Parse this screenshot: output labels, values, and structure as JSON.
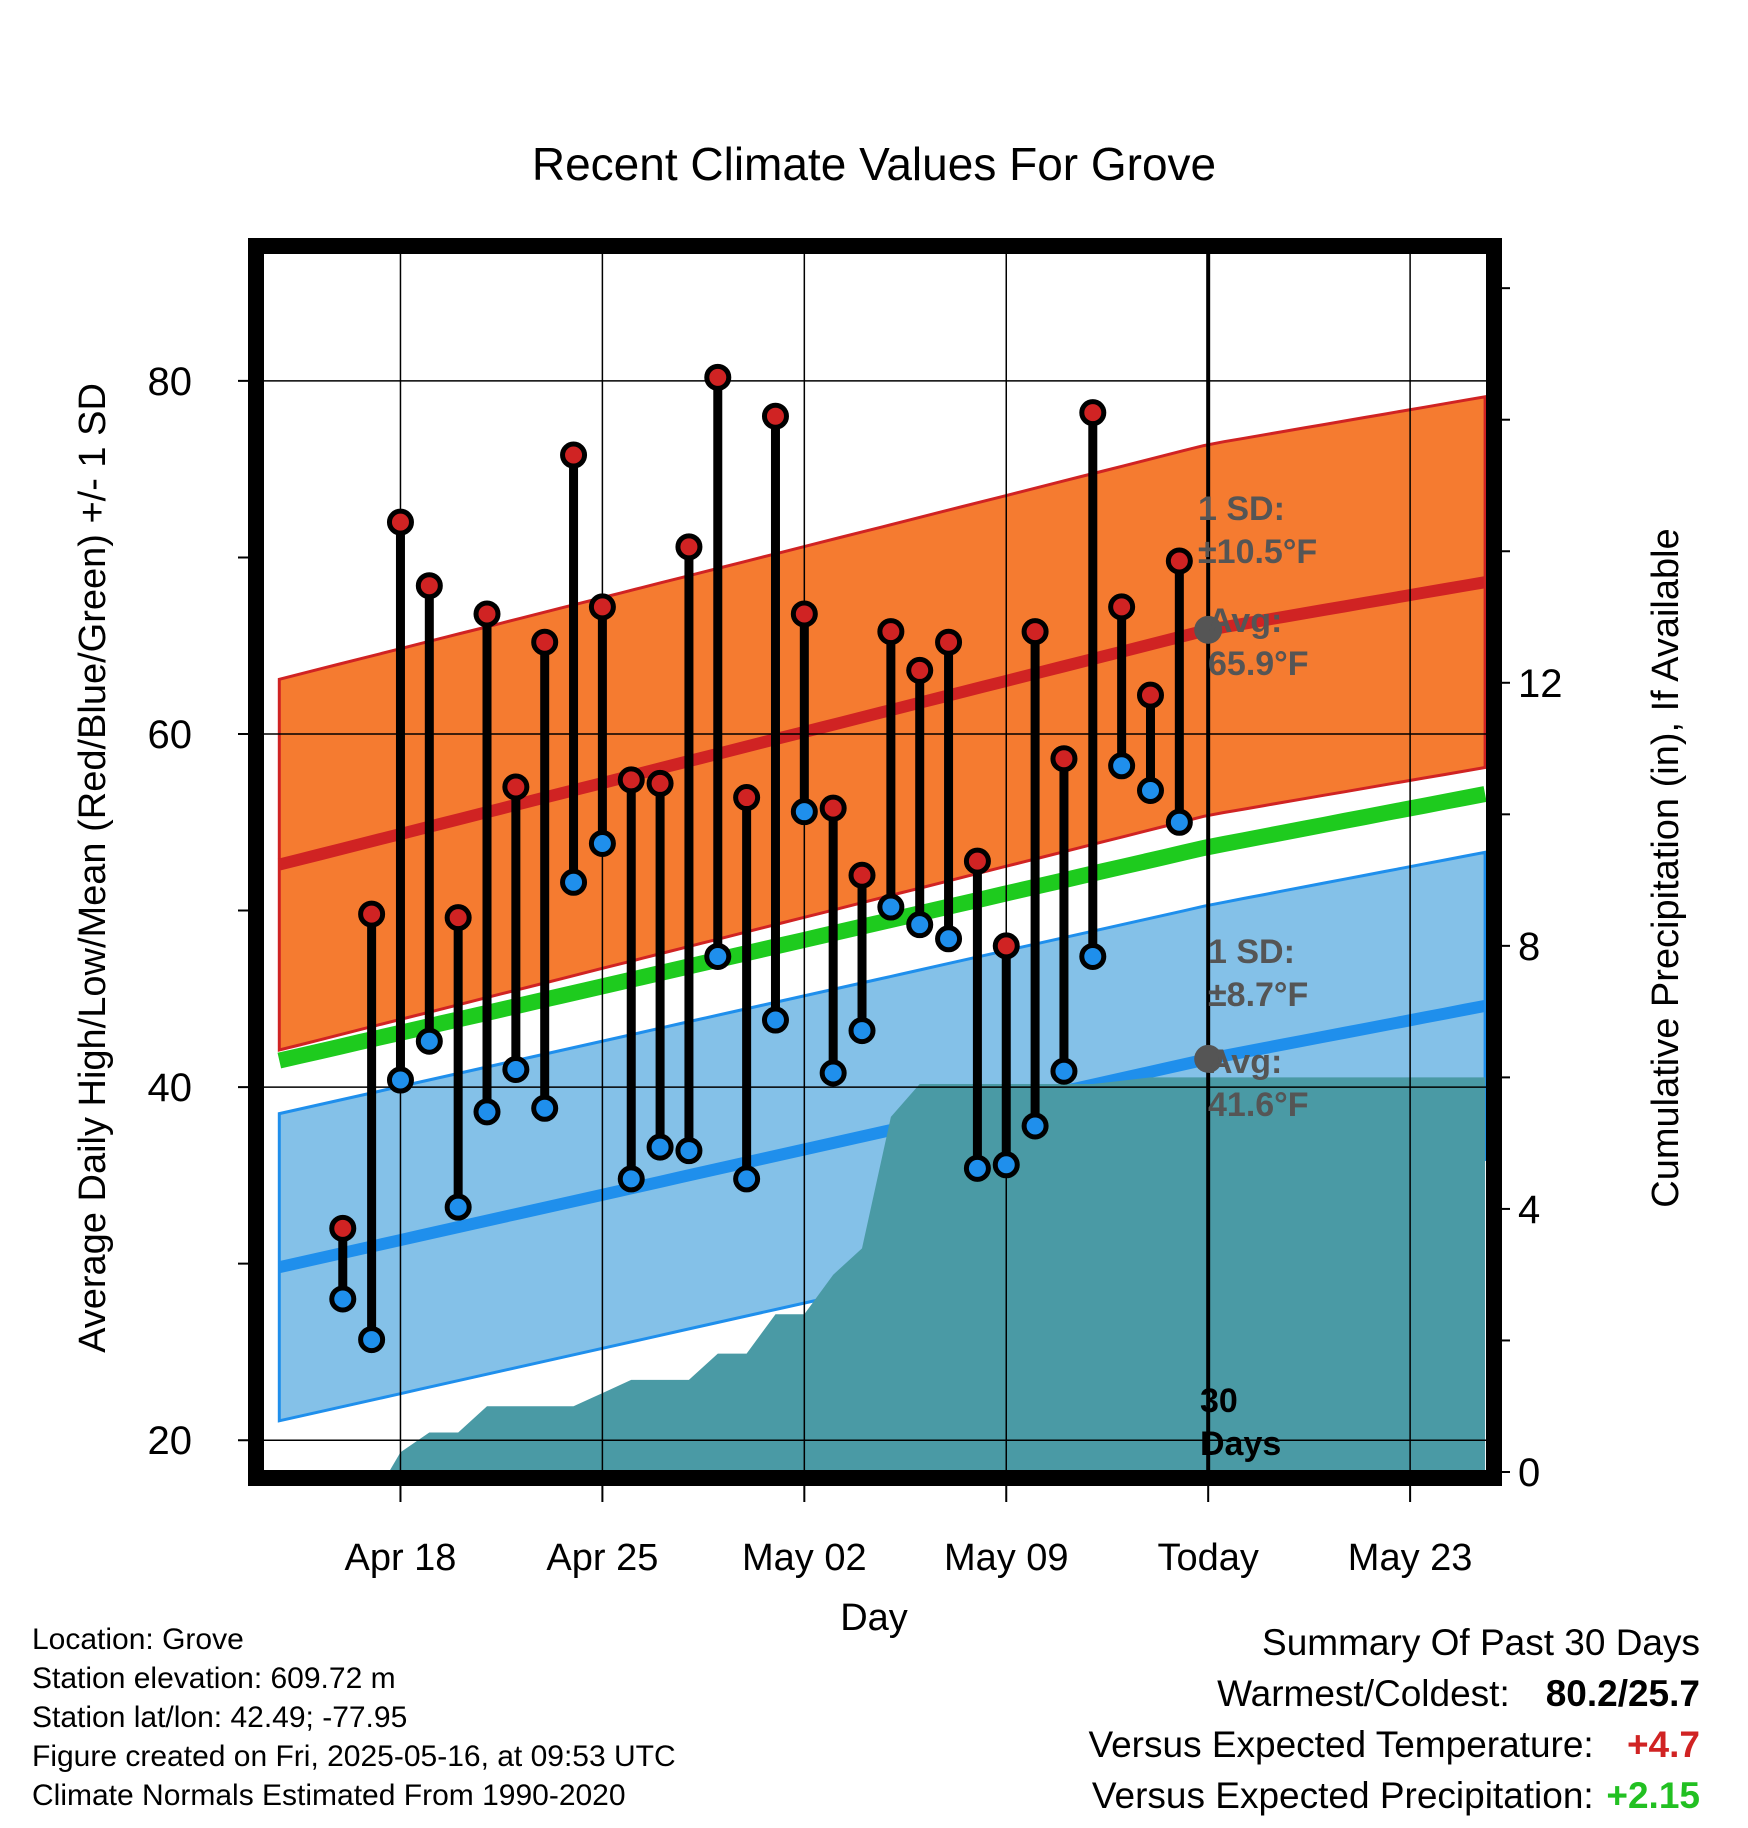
{
  "chart_data": {
    "type": "line",
    "title": "Recent Climate Values For Grove",
    "xlabel": "Day",
    "ylabel_left": "Average Daily High/Low/Mean (Red/Blue/Green) +/- 1 SD",
    "ylabel_right": "Cumulative Precipitation (in), If Available",
    "ylim_left": [
      18.2,
      87.3
    ],
    "ylim_right": [
      0,
      18.55
    ],
    "y_left_ticks": [
      20,
      40,
      60,
      80
    ],
    "y_right_ticks": [
      0,
      4,
      8,
      12
    ],
    "x_range_days": [
      -32.8,
      9.7
    ],
    "x_ticks": [
      {
        "day": -28,
        "label": "Apr 18"
      },
      {
        "day": -21,
        "label": "Apr 25"
      },
      {
        "day": -14,
        "label": "May 02"
      },
      {
        "day": -7,
        "label": "May 09"
      },
      {
        "day": 0,
        "label": "Today"
      },
      {
        "day": 7,
        "label": "May 23"
      }
    ],
    "today_day": 0,
    "grid": true,
    "series": [
      {
        "name": "Daily High",
        "color": "#d02323",
        "days": [
          -30,
          -29,
          -28,
          -27,
          -26,
          -25,
          -24,
          -23,
          -22,
          -21,
          -20,
          -19,
          -18,
          -17,
          -16,
          -15,
          -14,
          -13,
          -12,
          -11,
          -10,
          -9,
          -8,
          -7,
          -6,
          -5,
          -4,
          -3,
          -2,
          -1
        ],
        "values": [
          32.0,
          49.8,
          72.0,
          68.4,
          49.6,
          66.8,
          57.0,
          65.2,
          75.8,
          67.2,
          57.4,
          57.2,
          70.6,
          80.2,
          56.4,
          78.0,
          66.8,
          55.8,
          52.0,
          65.8,
          63.6,
          65.2,
          52.8,
          48.0,
          65.8,
          58.6,
          78.2,
          67.2,
          62.2,
          69.8
        ]
      },
      {
        "name": "Daily Low",
        "color": "#1f8fec",
        "days": [
          -30,
          -29,
          -28,
          -27,
          -26,
          -25,
          -24,
          -23,
          -22,
          -21,
          -20,
          -19,
          -18,
          -17,
          -16,
          -15,
          -14,
          -13,
          -12,
          -11,
          -10,
          -9,
          -8,
          -7,
          -6,
          -5,
          -4,
          -3,
          -2,
          -1
        ],
        "values": [
          28.0,
          25.7,
          40.4,
          42.6,
          33.2,
          38.6,
          41.0,
          38.8,
          51.6,
          53.8,
          34.8,
          36.6,
          36.4,
          47.4,
          34.8,
          43.8,
          55.6,
          40.8,
          43.2,
          50.2,
          49.2,
          48.4,
          35.4,
          35.6,
          37.8,
          40.9,
          47.4,
          58.2,
          56.8,
          55.0
        ]
      },
      {
        "name": "Normal High",
        "color": "#d02323",
        "days": [
          -32.2,
          0,
          9.6
        ],
        "values": [
          52.6,
          65.9,
          68.6
        ]
      },
      {
        "name": "Normal High SD band",
        "sd": 10.5,
        "color": "#f57b30"
      },
      {
        "name": "Normal Mean",
        "color": "#1ecb1e",
        "days": [
          -32.2,
          0,
          9.6
        ],
        "values": [
          41.5,
          53.6,
          56.6
        ]
      },
      {
        "name": "Normal Low",
        "color": "#1f8fec",
        "days": [
          -32.2,
          0,
          9.6
        ],
        "values": [
          29.8,
          41.6,
          44.6
        ]
      },
      {
        "name": "Normal Low SD band",
        "sd": 8.7,
        "color": "#84c1e8"
      },
      {
        "name": "Cumulative Precipitation",
        "color": "#4a9aa5",
        "days": [
          -28.4,
          -28,
          -27,
          -26,
          -25,
          -24,
          -23,
          -22,
          -21,
          -20,
          -19,
          -18,
          -17,
          -16,
          -15,
          -14,
          -13,
          -12,
          -11,
          -10,
          -9,
          -8,
          -7,
          -6,
          -5,
          -4,
          -3,
          -2,
          -1,
          0,
          9.6
        ],
        "values": [
          0.0,
          0.3,
          0.6,
          0.6,
          1.0,
          1.0,
          1.0,
          1.0,
          1.2,
          1.4,
          1.4,
          1.4,
          1.8,
          1.8,
          2.4,
          2.4,
          3.0,
          3.4,
          5.4,
          5.9,
          5.9,
          5.9,
          5.9,
          5.9,
          5.9,
          5.9,
          5.95,
          6.0,
          6.0,
          6.0,
          6.0
        ]
      }
    ],
    "annotations": {
      "high_sd_label": "1 SD:",
      "high_sd_value": "±10.5°F",
      "high_avg_label": "Avg:",
      "high_avg_value": "65.9°F",
      "low_sd_label": "1 SD:",
      "low_sd_value": "±8.7°F",
      "low_avg_label": "Avg:",
      "low_avg_value": "41.6°F",
      "period_line1": "30",
      "period_line2": "Days"
    }
  },
  "footer": {
    "location": "Location: Grove",
    "elevation": "Station elevation: 609.72 m",
    "latlon": "Station lat/lon: 42.49; -77.95",
    "created": "Figure created on Fri, 2025-05-16, at 09:53 UTC",
    "normals": "Climate Normals Estimated From 1990-2020"
  },
  "summary": {
    "heading": "Summary Of Past 30 Days",
    "warm_cold_label": "Warmest/Coldest:",
    "warm_cold_value": "80.2/25.7",
    "temp_label": "Versus Expected Temperature:",
    "temp_value": "+4.7",
    "precip_label": "Versus Expected Precipitation:",
    "precip_value": "+2.15"
  }
}
